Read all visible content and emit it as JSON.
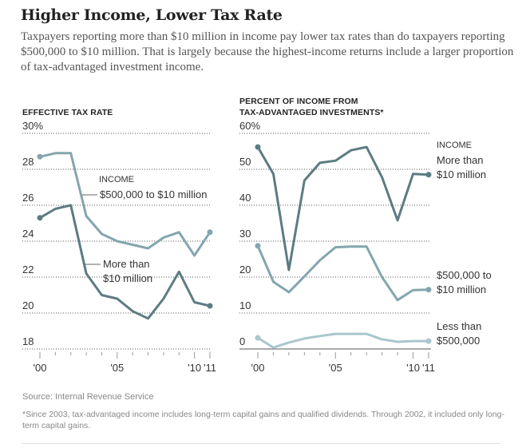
{
  "header": {
    "title": "Higher Income, Lower Tax Rate",
    "description": "Taxpayers reporting more than $10 million in income pay lower tax rates than do taxpayers reporting $500,000 to $10 million. That is largely because the highest-income returns include a larger proportion of tax-advantaged investment income."
  },
  "footer": {
    "source": "Source: Internal Revenue Service",
    "note": "*Since 2003, tax-advantaged income includes long-term capital gains and qualified dividends. Through 2002, it included only long-term capital gains."
  },
  "colors": {
    "dark": "#5c7c82",
    "mid": "#83a6ae",
    "light": "#a9c6cd"
  },
  "chart_data": [
    {
      "type": "line",
      "title": "EFFECTIVE TAX RATE",
      "x": [
        2000,
        2001,
        2002,
        2003,
        2004,
        2005,
        2006,
        2007,
        2008,
        2009,
        2010,
        2011
      ],
      "x_tick_labels": [
        "'00",
        "",
        "",
        "",
        "",
        "'05",
        "",
        "",
        "",
        "",
        "'10",
        "'11"
      ],
      "ylim": [
        18,
        30
      ],
      "y_ticks": [
        18,
        20,
        22,
        24,
        26,
        28,
        30
      ],
      "y_tick_labels": [
        "18",
        "20",
        "22",
        "24",
        "26",
        "28",
        "30%"
      ],
      "grid": true,
      "legend_header": "INCOME",
      "series": [
        {
          "name": "$500,000 to $10 million",
          "color_key": "mid",
          "values": [
            28.7,
            28.9,
            28.9,
            25.4,
            24.4,
            24.0,
            23.8,
            23.6,
            24.2,
            24.5,
            23.2,
            24.5
          ]
        },
        {
          "name": "More than $10 million",
          "label_lines": [
            "More than",
            "$10 million"
          ],
          "color_key": "dark",
          "values": [
            25.3,
            25.8,
            26.0,
            22.2,
            21.0,
            20.8,
            20.1,
            19.7,
            20.8,
            22.3,
            20.6,
            20.4
          ]
        }
      ]
    },
    {
      "type": "line",
      "title": "PERCENT OF INCOME FROM TAX-ADVANTAGED INVESTMENTS*",
      "title_lines": [
        "PERCENT OF INCOME FROM",
        "TAX-ADVANTAGED INVESTMENTS*"
      ],
      "x": [
        2000,
        2001,
        2002,
        2003,
        2004,
        2005,
        2006,
        2007,
        2008,
        2009,
        2010,
        2011
      ],
      "x_tick_labels": [
        "'00",
        "",
        "",
        "",
        "",
        "'05",
        "",
        "",
        "",
        "",
        "'10",
        "'11"
      ],
      "ylim": [
        0,
        60
      ],
      "y_ticks": [
        0,
        10,
        20,
        30,
        40,
        50,
        60
      ],
      "y_tick_labels": [
        "0",
        "10",
        "20",
        "30",
        "40",
        "50",
        "60%"
      ],
      "grid": true,
      "legend_header": "INCOME",
      "series": [
        {
          "name": "More than $10 million",
          "label_lines": [
            "More than",
            "$10 million"
          ],
          "color_key": "dark",
          "values": [
            56.2,
            48.7,
            22.0,
            46.9,
            51.8,
            52.4,
            55.3,
            56.2,
            47.8,
            35.8,
            48.7,
            48.5
          ]
        },
        {
          "name": "$500,000 to $10 million",
          "label_lines": [
            "$500,000 to",
            "$10 million"
          ],
          "color_key": "mid",
          "values": [
            28.7,
            18.7,
            15.8,
            20.2,
            24.7,
            28.3,
            28.5,
            28.5,
            20.0,
            13.6,
            16.4,
            16.5
          ]
        },
        {
          "name": "Less than $500,000",
          "label_lines": [
            "Less than",
            "$500,000"
          ],
          "color_key": "light",
          "values": [
            3.1,
            0.4,
            1.8,
            2.9,
            3.6,
            4.2,
            4.2,
            4.2,
            2.7,
            2.0,
            2.2,
            2.2
          ]
        }
      ]
    }
  ]
}
